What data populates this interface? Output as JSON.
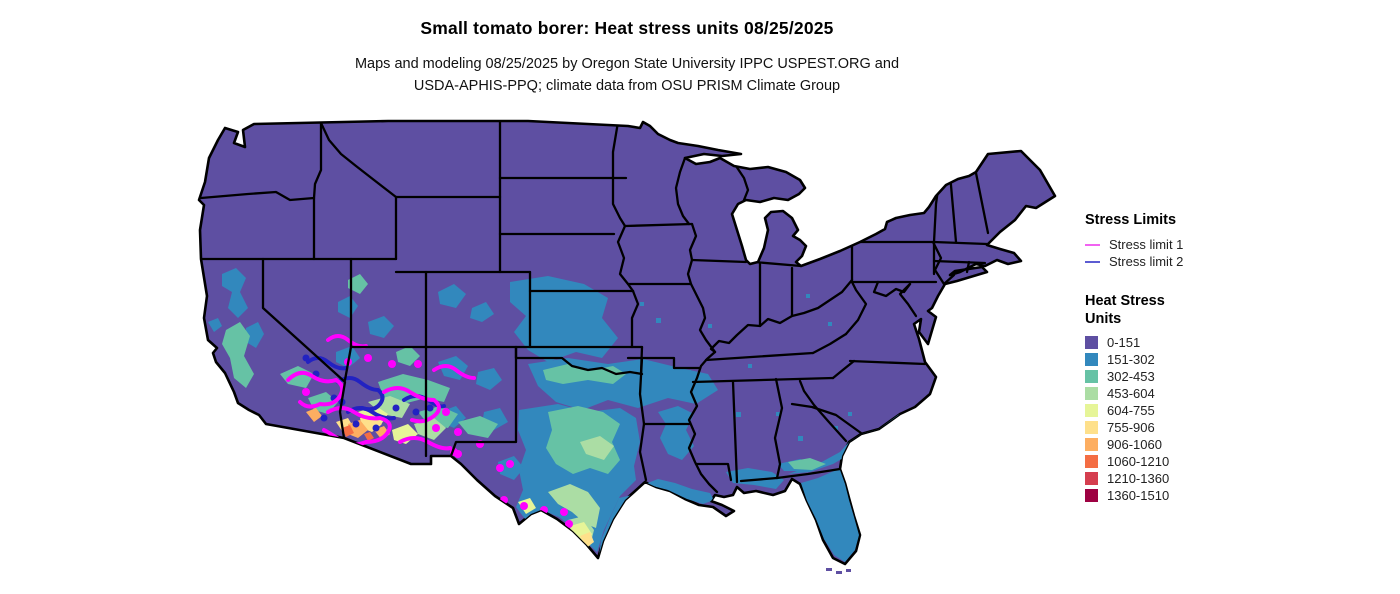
{
  "title": "Small tomato borer: Heat stress units 08/25/2025",
  "subtitle": {
    "line1": "Maps and modeling 08/25/2025 by Oregon State University IPPC USPEST.ORG and",
    "line2": "USDA-APHIS-PPQ; climate data from OSU PRISM Climate Group"
  },
  "legend_stress_limits": {
    "title": "Stress Limits",
    "items": [
      {
        "label": "Stress limit 1",
        "color": "#f163f1"
      },
      {
        "label": "Stress limit 2",
        "color": "#5c5cd2"
      }
    ]
  },
  "legend_heat_stress": {
    "title_line1": "Heat Stress",
    "title_line2": "Units",
    "classes": [
      {
        "label": "0-151",
        "color": "#5e4fa2"
      },
      {
        "label": "151-302",
        "color": "#3288bd"
      },
      {
        "label": "302-453",
        "color": "#66c2a5"
      },
      {
        "label": "453-604",
        "color": "#abdda4"
      },
      {
        "label": "604-755",
        "color": "#e6f598"
      },
      {
        "label": "755-906",
        "color": "#fee08b"
      },
      {
        "label": "906-1060",
        "color": "#fdae61"
      },
      {
        "label": "1060-1210",
        "color": "#f46d43"
      },
      {
        "label": "1210-1360",
        "color": "#d53e4f"
      },
      {
        "label": "1360-1510",
        "color": "#9e0142"
      }
    ]
  },
  "map": {
    "region": "Contiguous United States",
    "base_class": "0-151",
    "background": "#ffffff",
    "state_border_color": "#000000",
    "stress_limit1_color": "#ff00ff",
    "stress_limit2_color": "#2222c2",
    "dominant_classes_by_region": {
      "pacific_northwest": "0-151",
      "northeast_midwest": "0-151",
      "central_plains": "151-302",
      "texas": "151-453",
      "south_texas": "453-906",
      "florida_southeast_coast": "151-302",
      "southwest_deserts_AZ_SE_CA": "604-1210"
    }
  }
}
